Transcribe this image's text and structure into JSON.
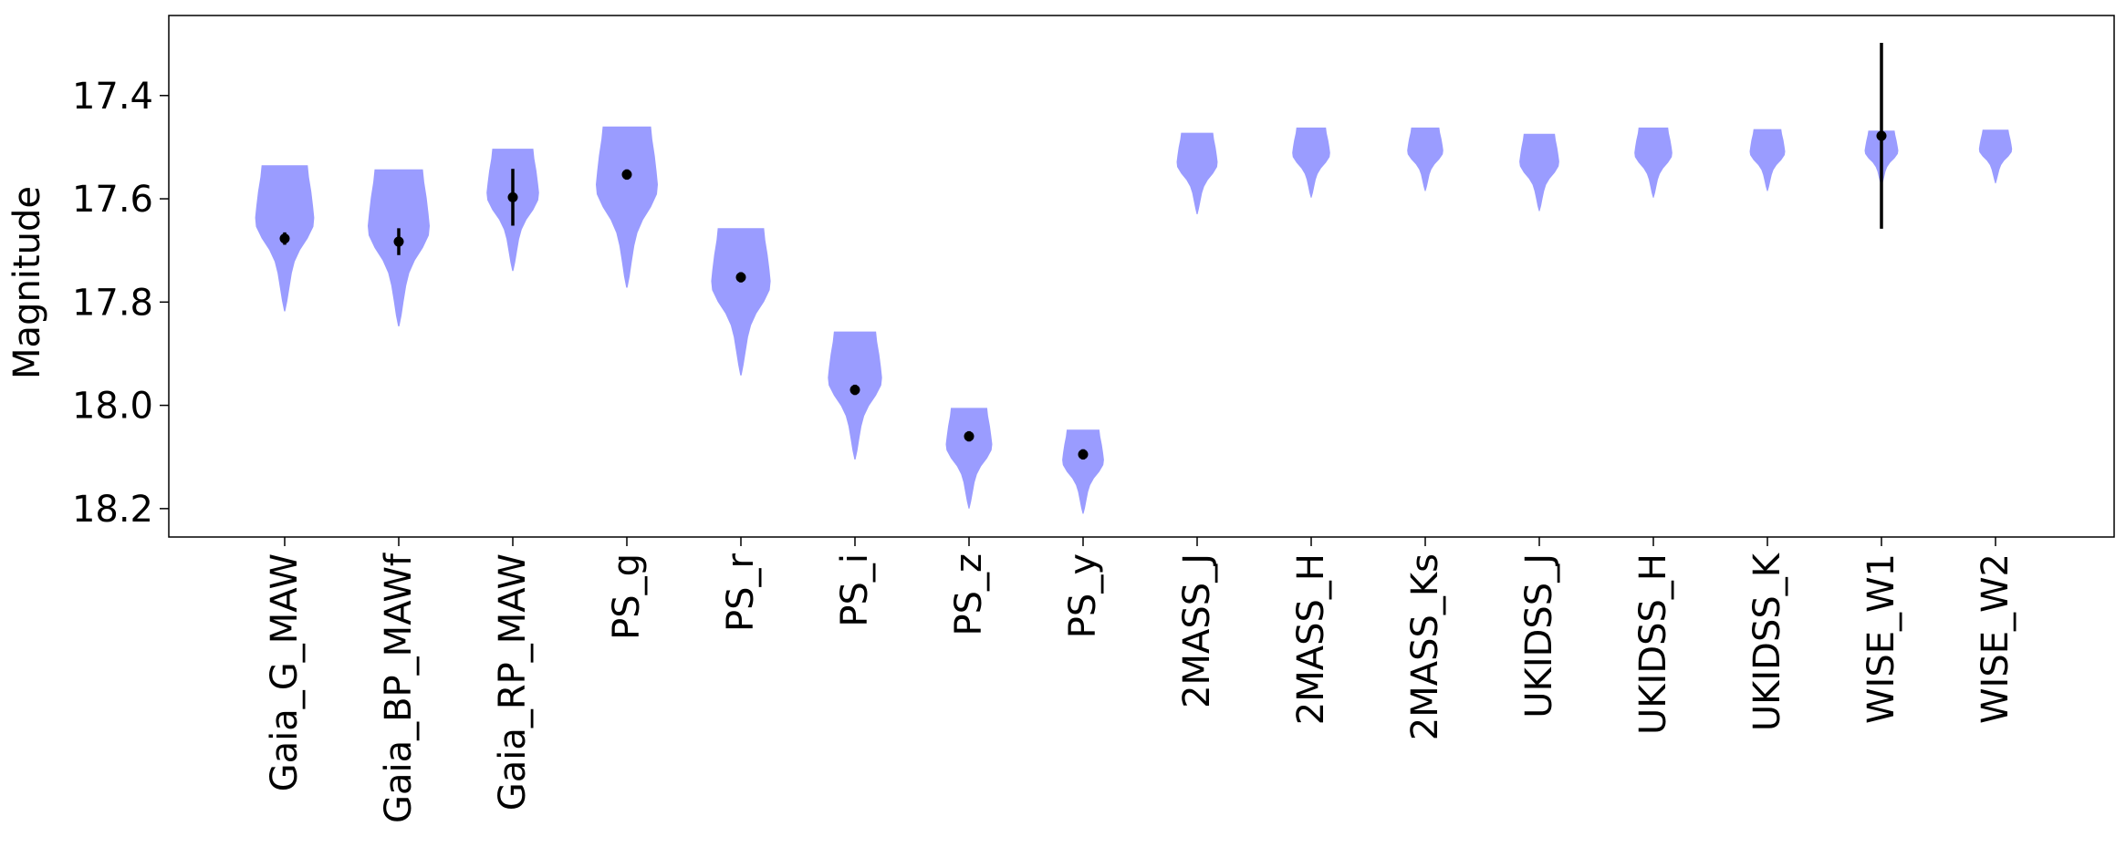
{
  "chart_data": {
    "type": "violin",
    "ylabel": "Magnitude",
    "y_inverted": true,
    "ylim": [
      18.255,
      17.245
    ],
    "yticks": [
      17.4,
      17.6,
      17.8,
      18.0,
      18.2
    ],
    "ytick_labels": [
      "17.4",
      "17.6",
      "17.8",
      "18.0",
      "18.2"
    ],
    "grid": false,
    "violin_color": "#9a9cff",
    "marker_color": "#000000",
    "categories": [
      "Gaia_G_MAW",
      "Gaia_BP_MAWf",
      "Gaia_RP_MAW",
      "PS_g",
      "PS_r",
      "PS_i",
      "PS_z",
      "PS_y",
      "2MASS_J",
      "2MASS_H",
      "2MASS_Ks",
      "UKIDSS_J",
      "UKIDSS_H",
      "UKIDSS_K",
      "WISE_W1",
      "WISE_W2"
    ],
    "series": [
      {
        "band": "Gaia_G_MAW",
        "value": 17.677,
        "err": 0.012,
        "violin_min": 17.535,
        "violin_max": 17.818
      },
      {
        "band": "Gaia_BP_MAWf",
        "value": 17.683,
        "err": 0.026,
        "violin_min": 17.543,
        "violin_max": 17.847
      },
      {
        "band": "Gaia_RP_MAW",
        "value": 17.597,
        "err": 0.055,
        "violin_min": 17.503,
        "violin_max": 17.74
      },
      {
        "band": "PS_g",
        "value": 17.553,
        "err": 0.01,
        "violin_min": 17.46,
        "violin_max": 17.772
      },
      {
        "band": "PS_r",
        "value": 17.752,
        "err": 0.01,
        "violin_min": 17.657,
        "violin_max": 17.942
      },
      {
        "band": "PS_i",
        "value": 17.97,
        "err": 0.01,
        "violin_min": 17.857,
        "violin_max": 18.105
      },
      {
        "band": "PS_z",
        "value": 18.06,
        "err": 0.01,
        "violin_min": 18.005,
        "violin_max": 18.2
      },
      {
        "band": "PS_y",
        "value": 18.095,
        "err": 0.01,
        "violin_min": 18.047,
        "violin_max": 18.21
      },
      {
        "band": "2MASS_J",
        "value": null,
        "err": null,
        "violin_min": 17.472,
        "violin_max": 17.63
      },
      {
        "band": "2MASS_H",
        "value": null,
        "err": null,
        "violin_min": 17.462,
        "violin_max": 17.598
      },
      {
        "band": "2MASS_Ks",
        "value": null,
        "err": null,
        "violin_min": 17.462,
        "violin_max": 17.585
      },
      {
        "band": "UKIDSS_J",
        "value": null,
        "err": null,
        "violin_min": 17.474,
        "violin_max": 17.624
      },
      {
        "band": "UKIDSS_H",
        "value": null,
        "err": null,
        "violin_min": 17.462,
        "violin_max": 17.598
      },
      {
        "band": "UKIDSS_K",
        "value": null,
        "err": null,
        "violin_min": 17.465,
        "violin_max": 17.585
      },
      {
        "band": "WISE_W1",
        "value": 17.478,
        "err": 0.18,
        "violin_min": 17.468,
        "violin_max": 17.575
      },
      {
        "band": "WISE_W2",
        "value": null,
        "err": null,
        "violin_min": 17.466,
        "violin_max": 17.57
      }
    ]
  }
}
